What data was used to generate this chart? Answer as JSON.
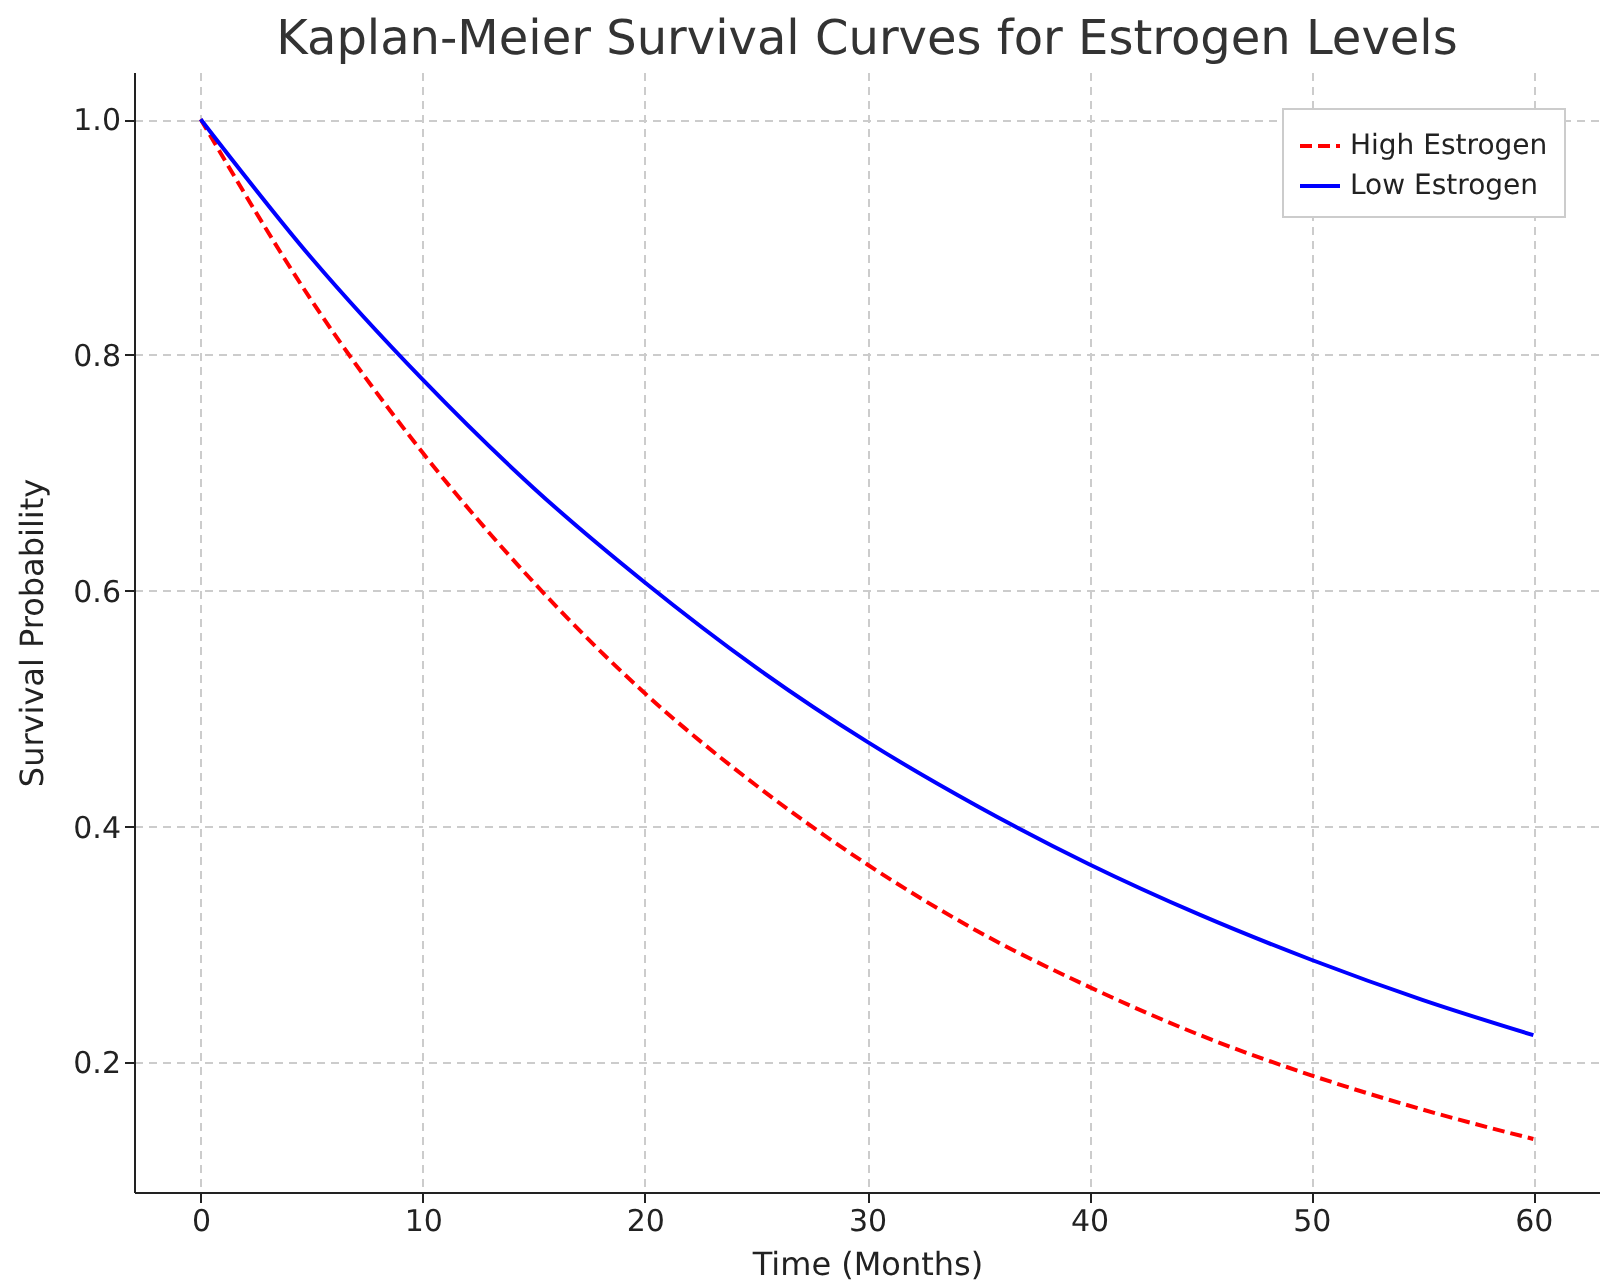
{
  "chart_data": {
    "type": "line",
    "title": "Kaplan-Meier Survival Curves for Estrogen Levels",
    "xlabel": "Time (Months)",
    "ylabel": "Survival Probability",
    "x": [
      0,
      5,
      10,
      15,
      20,
      25,
      30,
      35,
      40,
      45,
      50,
      55,
      60
    ],
    "series": [
      {
        "name": "High Estrogen",
        "color": "#ff0000",
        "line_style": "dashed",
        "values": [
          1.0,
          0.846,
          0.717,
          0.607,
          0.513,
          0.435,
          0.368,
          0.311,
          0.264,
          0.223,
          0.189,
          0.16,
          0.135
        ]
      },
      {
        "name": "Low Estrogen",
        "color": "#0000ff",
        "line_style": "solid",
        "values": [
          1.0,
          0.882,
          0.779,
          0.687,
          0.607,
          0.535,
          0.472,
          0.417,
          0.368,
          0.325,
          0.287,
          0.253,
          0.223
        ]
      }
    ],
    "xlim": [
      -3,
      63
    ],
    "ylim": [
      0.09,
      1.04
    ],
    "xticks": [
      0,
      10,
      20,
      30,
      40,
      50,
      60
    ],
    "yticks": [
      0.2,
      0.4,
      0.6,
      0.8,
      {
        "value": 1,
        "label": "1.0"
      }
    ],
    "grid": true,
    "legend": "top right",
    "marker": "none"
  }
}
